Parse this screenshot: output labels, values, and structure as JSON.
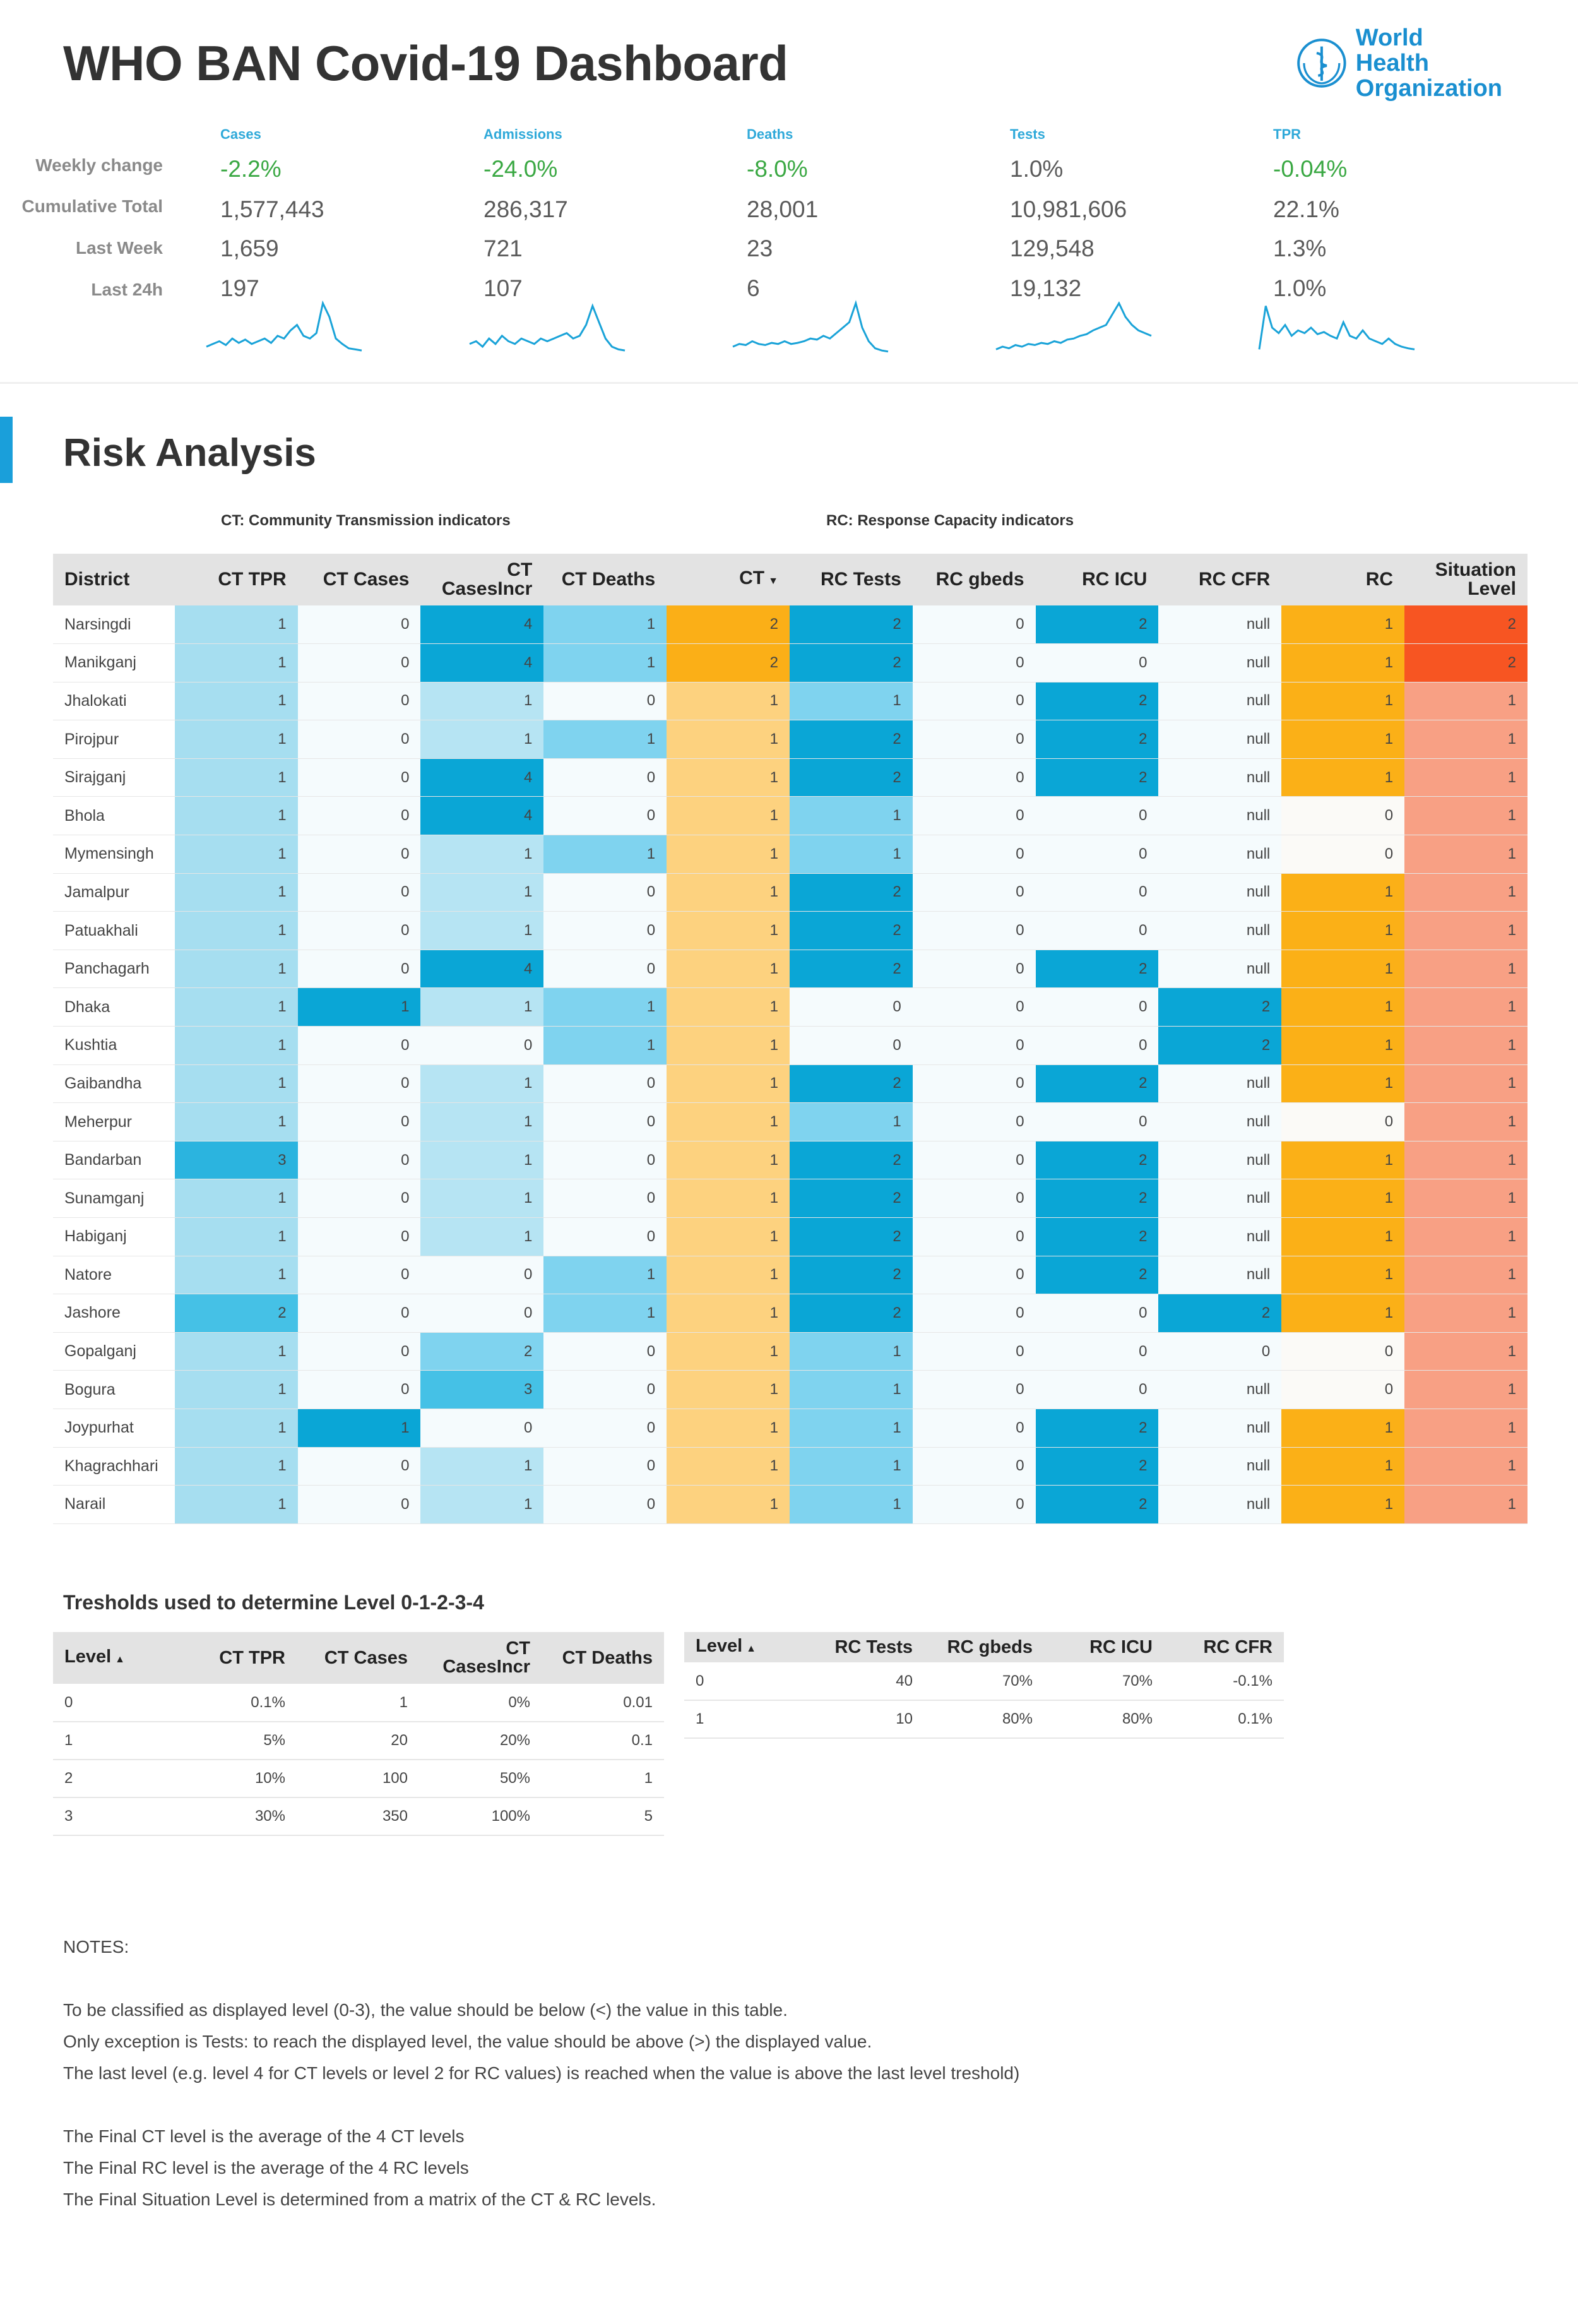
{
  "header": {
    "title": "WHO BAN Covid-19 Dashboard",
    "logo_text_line1": "World Health",
    "logo_text_line2": "Organization"
  },
  "kpi": {
    "row_labels": [
      "Weekly change",
      "Cumulative Total",
      "Last Week",
      "Last 24h"
    ],
    "columns": [
      {
        "name": "Cases",
        "weekly_change": "-2.2%",
        "cumulative": "1,577,443",
        "last_week": "1,659",
        "last_24h": "197"
      },
      {
        "name": "Admissions",
        "weekly_change": "-24.0%",
        "cumulative": "286,317",
        "last_week": "721",
        "last_24h": "107"
      },
      {
        "name": "Deaths",
        "weekly_change": "-8.0%",
        "cumulative": "28,001",
        "last_week": "23",
        "last_24h": "6"
      },
      {
        "name": "Tests",
        "weekly_change": "1.0%",
        "cumulative": "10,981,606",
        "last_week": "129,548",
        "last_24h": "19,132"
      },
      {
        "name": "TPR",
        "weekly_change": "-0.04%",
        "cumulative": "22.1%",
        "last_week": "1.3%",
        "last_24h": "1.0%"
      }
    ],
    "weekly_change_colors": [
      "#3aa843",
      "#3aa843",
      "#3aa843",
      "#5a5a5a",
      "#3aa843"
    ],
    "sparkline_color": "#1aa3d8"
  },
  "risk": {
    "title": "Risk Analysis",
    "ct_group_label": "CT: Community Transmission indicators",
    "rc_group_label": "RC: Response Capacity indicators",
    "columns": [
      "District",
      "CT TPR",
      "CT Cases",
      "CT CasesIncr",
      "CT Deaths",
      "CT",
      "RC Tests",
      "RC gbeds",
      "RC ICU",
      "RC CFR",
      "RC",
      "Situation Level"
    ],
    "sort_indicator": "▼",
    "rows": [
      [
        "Narsingdi",
        "1",
        "0",
        "4",
        "1",
        "2",
        "2",
        "0",
        "2",
        "null",
        "1",
        "2"
      ],
      [
        "Manikganj",
        "1",
        "0",
        "4",
        "1",
        "2",
        "2",
        "0",
        "0",
        "null",
        "1",
        "2"
      ],
      [
        "Jhalokati",
        "1",
        "0",
        "1",
        "0",
        "1",
        "1",
        "0",
        "2",
        "null",
        "1",
        "1"
      ],
      [
        "Pirojpur",
        "1",
        "0",
        "1",
        "1",
        "1",
        "2",
        "0",
        "2",
        "null",
        "1",
        "1"
      ],
      [
        "Sirajganj",
        "1",
        "0",
        "4",
        "0",
        "1",
        "2",
        "0",
        "2",
        "null",
        "1",
        "1"
      ],
      [
        "Bhola",
        "1",
        "0",
        "4",
        "0",
        "1",
        "1",
        "0",
        "0",
        "null",
        "0",
        "1"
      ],
      [
        "Mymensingh",
        "1",
        "0",
        "1",
        "1",
        "1",
        "1",
        "0",
        "0",
        "null",
        "0",
        "1"
      ],
      [
        "Jamalpur",
        "1",
        "0",
        "1",
        "0",
        "1",
        "2",
        "0",
        "0",
        "null",
        "1",
        "1"
      ],
      [
        "Patuakhali",
        "1",
        "0",
        "1",
        "0",
        "1",
        "2",
        "0",
        "0",
        "null",
        "1",
        "1"
      ],
      [
        "Panchagarh",
        "1",
        "0",
        "4",
        "0",
        "1",
        "2",
        "0",
        "2",
        "null",
        "1",
        "1"
      ],
      [
        "Dhaka",
        "1",
        "1",
        "1",
        "1",
        "1",
        "0",
        "0",
        "0",
        "2",
        "1",
        "1"
      ],
      [
        "Kushtia",
        "1",
        "0",
        "0",
        "1",
        "1",
        "0",
        "0",
        "0",
        "2",
        "1",
        "1"
      ],
      [
        "Gaibandha",
        "1",
        "0",
        "1",
        "0",
        "1",
        "2",
        "0",
        "2",
        "null",
        "1",
        "1"
      ],
      [
        "Meherpur",
        "1",
        "0",
        "1",
        "0",
        "1",
        "1",
        "0",
        "0",
        "null",
        "0",
        "1"
      ],
      [
        "Bandarban",
        "3",
        "0",
        "1",
        "0",
        "1",
        "2",
        "0",
        "2",
        "null",
        "1",
        "1"
      ],
      [
        "Sunamganj",
        "1",
        "0",
        "1",
        "0",
        "1",
        "2",
        "0",
        "2",
        "null",
        "1",
        "1"
      ],
      [
        "Habiganj",
        "1",
        "0",
        "1",
        "0",
        "1",
        "2",
        "0",
        "2",
        "null",
        "1",
        "1"
      ],
      [
        "Natore",
        "1",
        "0",
        "0",
        "1",
        "1",
        "2",
        "0",
        "2",
        "null",
        "1",
        "1"
      ],
      [
        "Jashore",
        "2",
        "0",
        "0",
        "1",
        "1",
        "2",
        "0",
        "0",
        "2",
        "1",
        "1"
      ],
      [
        "Gopalganj",
        "1",
        "0",
        "2",
        "0",
        "1",
        "1",
        "0",
        "0",
        "0",
        "0",
        "1"
      ],
      [
        "Bogura",
        "1",
        "0",
        "3",
        "0",
        "1",
        "1",
        "0",
        "0",
        "null",
        "0",
        "1"
      ],
      [
        "Joypurhat",
        "1",
        "1",
        "0",
        "0",
        "1",
        "1",
        "0",
        "2",
        "null",
        "1",
        "1"
      ],
      [
        "Khagrachhari",
        "1",
        "0",
        "1",
        "0",
        "1",
        "1",
        "0",
        "2",
        "null",
        "1",
        "1"
      ],
      [
        "Narail",
        "1",
        "0",
        "1",
        "0",
        "1",
        "1",
        "0",
        "2",
        "null",
        "1",
        "1"
      ]
    ],
    "colors": {
      "blue_0": "#f5fbfd",
      "blue_1": "#b6e4f3",
      "blue_1_tpr": "#a6def0",
      "blue_2": "#45c1e6",
      "blue_3": "#2bb4df",
      "blue_4": "#0aa6d6",
      "rc_1": "#7fd3ef",
      "rc_2": "#0aa6d6",
      "ct_1": "#fdd27f",
      "ct_2": "#fbaf17",
      "rc_level_0": "#fbfaf7",
      "rc_level_1": "#fbb017",
      "sit_1": "#f8a084",
      "sit_2": "#f75522"
    }
  },
  "thresholds": {
    "title": "Tresholds used to determine Level 0-1-2-3-4",
    "ct_table": {
      "columns": [
        "Level",
        "CT TPR",
        "CT Cases",
        "CT CasesIncr",
        "CT Deaths"
      ],
      "rows": [
        [
          "0",
          "0.1%",
          "1",
          "0%",
          "0.01"
        ],
        [
          "1",
          "5%",
          "20",
          "20%",
          "0.1"
        ],
        [
          "2",
          "10%",
          "100",
          "50%",
          "1"
        ],
        [
          "3",
          "30%",
          "350",
          "100%",
          "5"
        ]
      ]
    },
    "rc_table": {
      "columns": [
        "Level",
        "RC Tests",
        "RC gbeds",
        "RC ICU",
        "RC CFR"
      ],
      "rows": [
        [
          "0",
          "40",
          "70%",
          "70%",
          "-0.1%"
        ],
        [
          "1",
          "10",
          "80%",
          "80%",
          "0.1%"
        ]
      ]
    },
    "sort_indicator": "▲"
  },
  "notes": {
    "heading": "NOTES:",
    "lines": [
      "To be classified as displayed level (0-3), the value should be below (<) the value in this table.",
      "Only exception is Tests: to reach the displayed level, the value should be above (>) the displayed value.",
      "The last level (e.g. level 4 for CT levels or level 2 for RC values) is reached when the value is above the last level treshold)",
      "The Final CT level is the average of the 4 CT levels",
      "The Final RC level is the average of the 4 RC levels",
      "The Final Situation Level is determined from a matrix of the CT & RC levels."
    ]
  }
}
